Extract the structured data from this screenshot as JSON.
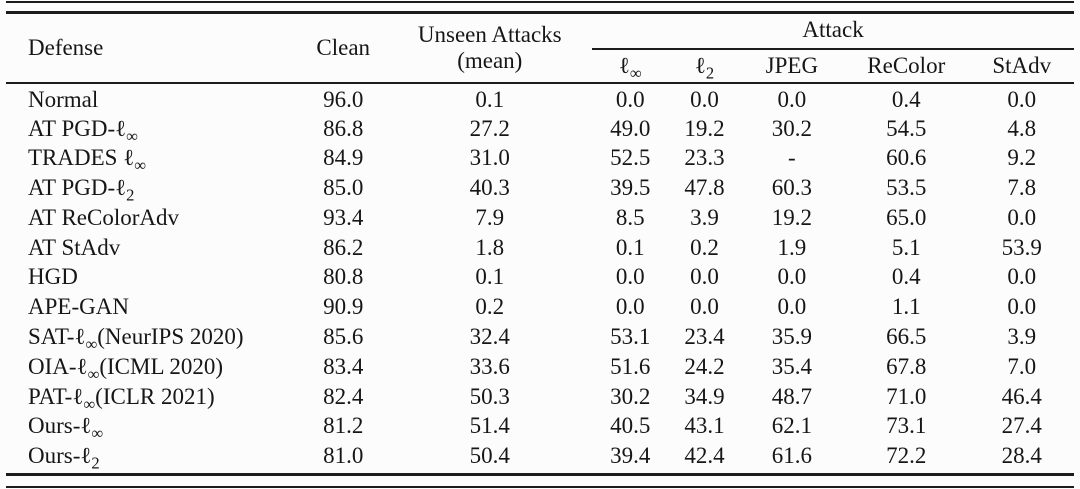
{
  "table": {
    "columns": {
      "defense": "Defense",
      "clean": "Clean",
      "unseen_line1": "Unseen Attacks",
      "unseen_line2": "(mean)",
      "attack_group": "Attack",
      "attack_subcols": [
        "ℓ∞",
        "ℓ2",
        "JPEG",
        "ReColor",
        "StAdv"
      ]
    },
    "rows": [
      {
        "defense": "Normal",
        "clean": "96.0",
        "unseen": "0.1",
        "linf": "0.0",
        "l2": "0.0",
        "jpeg": "0.0",
        "recolor": "0.4",
        "stadv": "0.0"
      },
      {
        "defense": "AT PGD-ℓ∞",
        "clean": "86.8",
        "unseen": "27.2",
        "linf": "49.0",
        "l2": "19.2",
        "jpeg": "30.2",
        "recolor": "54.5",
        "stadv": "4.8"
      },
      {
        "defense": "TRADES ℓ∞",
        "clean": "84.9",
        "unseen": "31.0",
        "linf": "52.5",
        "l2": "23.3",
        "jpeg": "-",
        "recolor": "60.6",
        "stadv": "9.2"
      },
      {
        "defense": "AT PGD-ℓ2",
        "clean": "85.0",
        "unseen": "40.3",
        "linf": "39.5",
        "l2": "47.8",
        "jpeg": "60.3",
        "recolor": "53.5",
        "stadv": "7.8"
      },
      {
        "defense": "AT ReColorAdv",
        "clean": "93.4",
        "unseen": "7.9",
        "linf": "8.5",
        "l2": "3.9",
        "jpeg": "19.2",
        "recolor": "65.0",
        "stadv": "0.0"
      },
      {
        "defense": "AT StAdv",
        "clean": "86.2",
        "unseen": "1.8",
        "linf": "0.1",
        "l2": "0.2",
        "jpeg": "1.9",
        "recolor": "5.1",
        "stadv": "53.9"
      },
      {
        "defense": "HGD",
        "clean": "80.8",
        "unseen": "0.1",
        "linf": "0.0",
        "l2": "0.0",
        "jpeg": "0.0",
        "recolor": "0.4",
        "stadv": "0.0"
      },
      {
        "defense": "APE-GAN",
        "clean": "90.9",
        "unseen": "0.2",
        "linf": "0.0",
        "l2": "0.0",
        "jpeg": "0.0",
        "recolor": "1.1",
        "stadv": "0.0"
      },
      {
        "defense": "SAT-ℓ∞(NeurIPS 2020)",
        "clean": "85.6",
        "unseen": "32.4",
        "linf": "53.1",
        "l2": "23.4",
        "jpeg": "35.9",
        "recolor": "66.5",
        "stadv": "3.9"
      },
      {
        "defense": "OIA-ℓ∞(ICML 2020)",
        "clean": "83.4",
        "unseen": "33.6",
        "linf": "51.6",
        "l2": "24.2",
        "jpeg": "35.4",
        "recolor": "67.8",
        "stadv": "7.0"
      },
      {
        "defense": "PAT-ℓ∞(ICLR 2021)",
        "clean": "82.4",
        "unseen": "50.3",
        "linf": "30.2",
        "l2": "34.9",
        "jpeg": "48.7",
        "recolor": "71.0",
        "stadv": "46.4"
      },
      {
        "defense": "Ours-ℓ∞",
        "clean": "81.2",
        "unseen": "51.4",
        "linf": "40.5",
        "l2": "43.1",
        "jpeg": "62.1",
        "recolor": "73.1",
        "stadv": "27.4"
      },
      {
        "defense": "Ours-ℓ2",
        "clean": "81.0",
        "unseen": "50.4",
        "linf": "39.4",
        "l2": "42.4",
        "jpeg": "61.6",
        "recolor": "72.2",
        "stadv": "28.4"
      }
    ]
  },
  "colors": {
    "rule": "#1c1c1c",
    "text": "#161616",
    "background": "#fcfcfc"
  }
}
